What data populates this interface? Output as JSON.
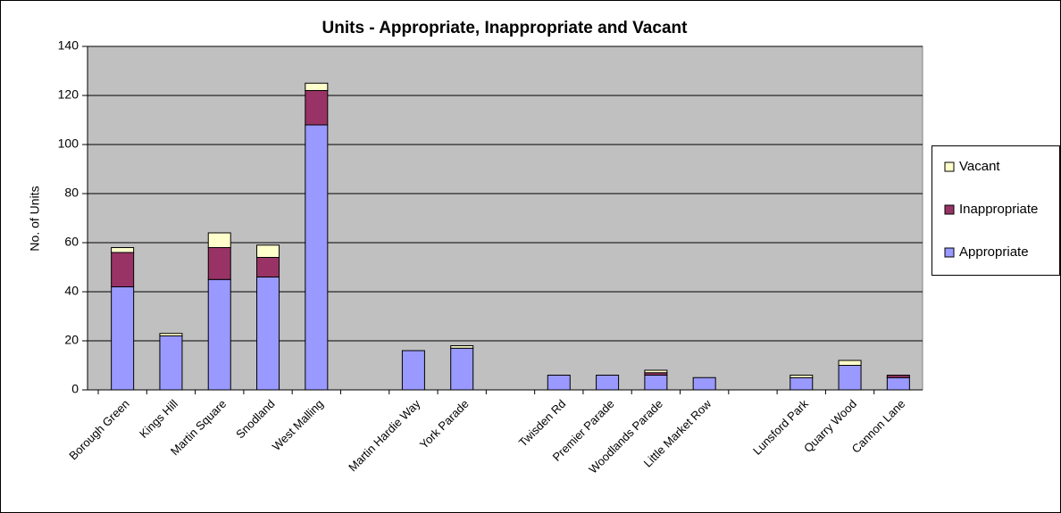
{
  "chart_data": {
    "type": "stacked_bar",
    "title": "Units - Appropriate, Inappropriate and Vacant",
    "y_label": "No. of Units",
    "categories": [
      "Borough Green",
      "Kings Hill",
      "Martin Square",
      "Snodland",
      "West Malling",
      null,
      "Martin Hardie Way",
      "York Parade",
      null,
      "Twisden Rd",
      "Premier Parade",
      "Woodlands Parade",
      "Little Market Row",
      null,
      "Lunsford Park",
      "Quarry Wood",
      "Cannon Lane"
    ],
    "series": [
      {
        "name": "Appropriate",
        "color": "#9999ff",
        "values": [
          42,
          22,
          45,
          46,
          108,
          null,
          16,
          17,
          null,
          6,
          6,
          6,
          5,
          null,
          5,
          10,
          5
        ]
      },
      {
        "name": "Inappropriate",
        "color": "#993366",
        "values": [
          14,
          0,
          13,
          8,
          14,
          null,
          0,
          0,
          null,
          0,
          0,
          1,
          0,
          null,
          0,
          0,
          1
        ]
      },
      {
        "name": "Vacant",
        "color": "#ffffcc",
        "values": [
          2,
          1,
          6,
          5,
          3,
          null,
          0,
          1,
          null,
          0,
          0,
          1,
          0,
          null,
          1,
          2,
          0
        ]
      }
    ],
    "ylim": [
      0,
      140
    ],
    "yticks": [
      0,
      20,
      40,
      60,
      80,
      100,
      120,
      140
    ],
    "grid": true,
    "legend": "right"
  }
}
